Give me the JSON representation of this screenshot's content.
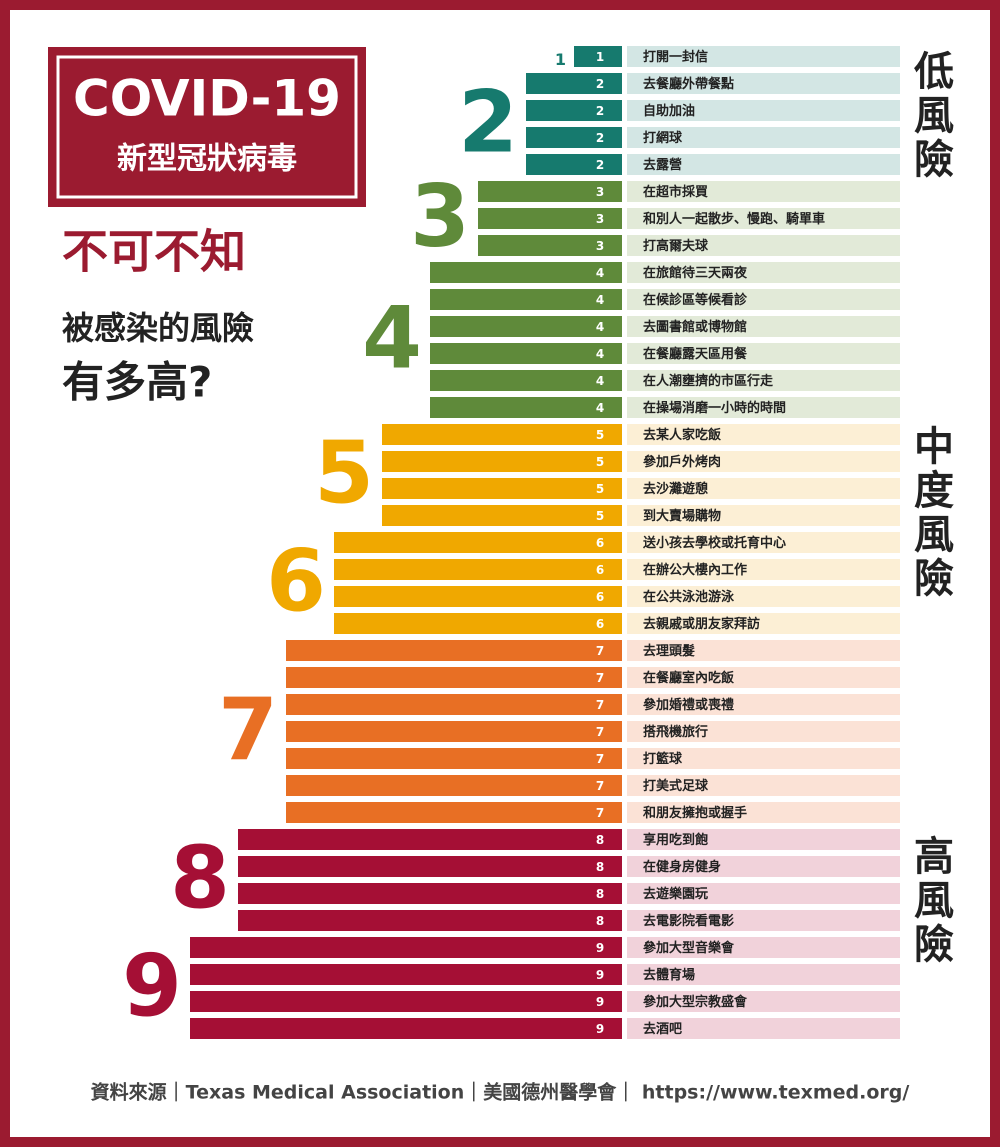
{
  "chart_data": {
    "type": "bar",
    "title": "COVID-19",
    "subtitle": "新型冠狀病毒",
    "headline": "不可不知",
    "question": [
      "被感染的風險",
      "有多高?"
    ],
    "categories": [
      "打開一封信",
      "去餐廳外帶餐點",
      "自助加油",
      "打網球",
      "去露營",
      "在超市採買",
      "和別人一起散步、慢跑、騎單車",
      "打高爾夫球",
      "在旅館待三天兩夜",
      "在候診區等候看診",
      "去圖書館或博物館",
      "在餐廳露天區用餐",
      "在人潮壅擠的市區行走",
      "在操場消磨一小時的時間",
      "去某人家吃飯",
      "參加戶外烤肉",
      "去沙灘遊憩",
      "到大賣場購物",
      "送小孩去學校或托育中心",
      "在辦公大樓內工作",
      "在公共泳池游泳",
      "去親戚或朋友家拜訪",
      "去理頭髮",
      "在餐廳室內吃飯",
      "參加婚禮或喪禮",
      "搭飛機旅行",
      "打籃球",
      "打美式足球",
      "和朋友擁抱或握手",
      "享用吃到飽",
      "在健身房健身",
      "去遊樂園玩",
      "去電影院看電影",
      "參加大型音樂會",
      "去體育場",
      "參加大型宗教盛會",
      "去酒吧"
    ],
    "values": [
      1,
      2,
      2,
      2,
      2,
      3,
      3,
      3,
      4,
      4,
      4,
      4,
      4,
      4,
      5,
      5,
      5,
      5,
      6,
      6,
      6,
      6,
      7,
      7,
      7,
      7,
      7,
      7,
      7,
      8,
      8,
      8,
      8,
      9,
      9,
      9,
      9
    ],
    "xlim": [
      0,
      9
    ],
    "colors": [
      "#167a6e",
      "#167a6e",
      "#5f8a3a",
      "#5f8a3a",
      "#f0a800",
      "#f0a800",
      "#e86f24",
      "#a50f35",
      "#a50f35"
    ],
    "band_colors": [
      "#d3e6e4",
      "#d3e6e4",
      "#e2ead8",
      "#e2ead8",
      "#fcefd5",
      "#fcefd5",
      "#fbe2d6",
      "#f1d2da",
      "#f1d2da"
    ],
    "risk_levels": [
      "低風險",
      "中度風險",
      "高風險"
    ],
    "source": "資料來源｜Texas Medical Association｜美國德州醫學會｜ https://www.texmed.org/"
  }
}
